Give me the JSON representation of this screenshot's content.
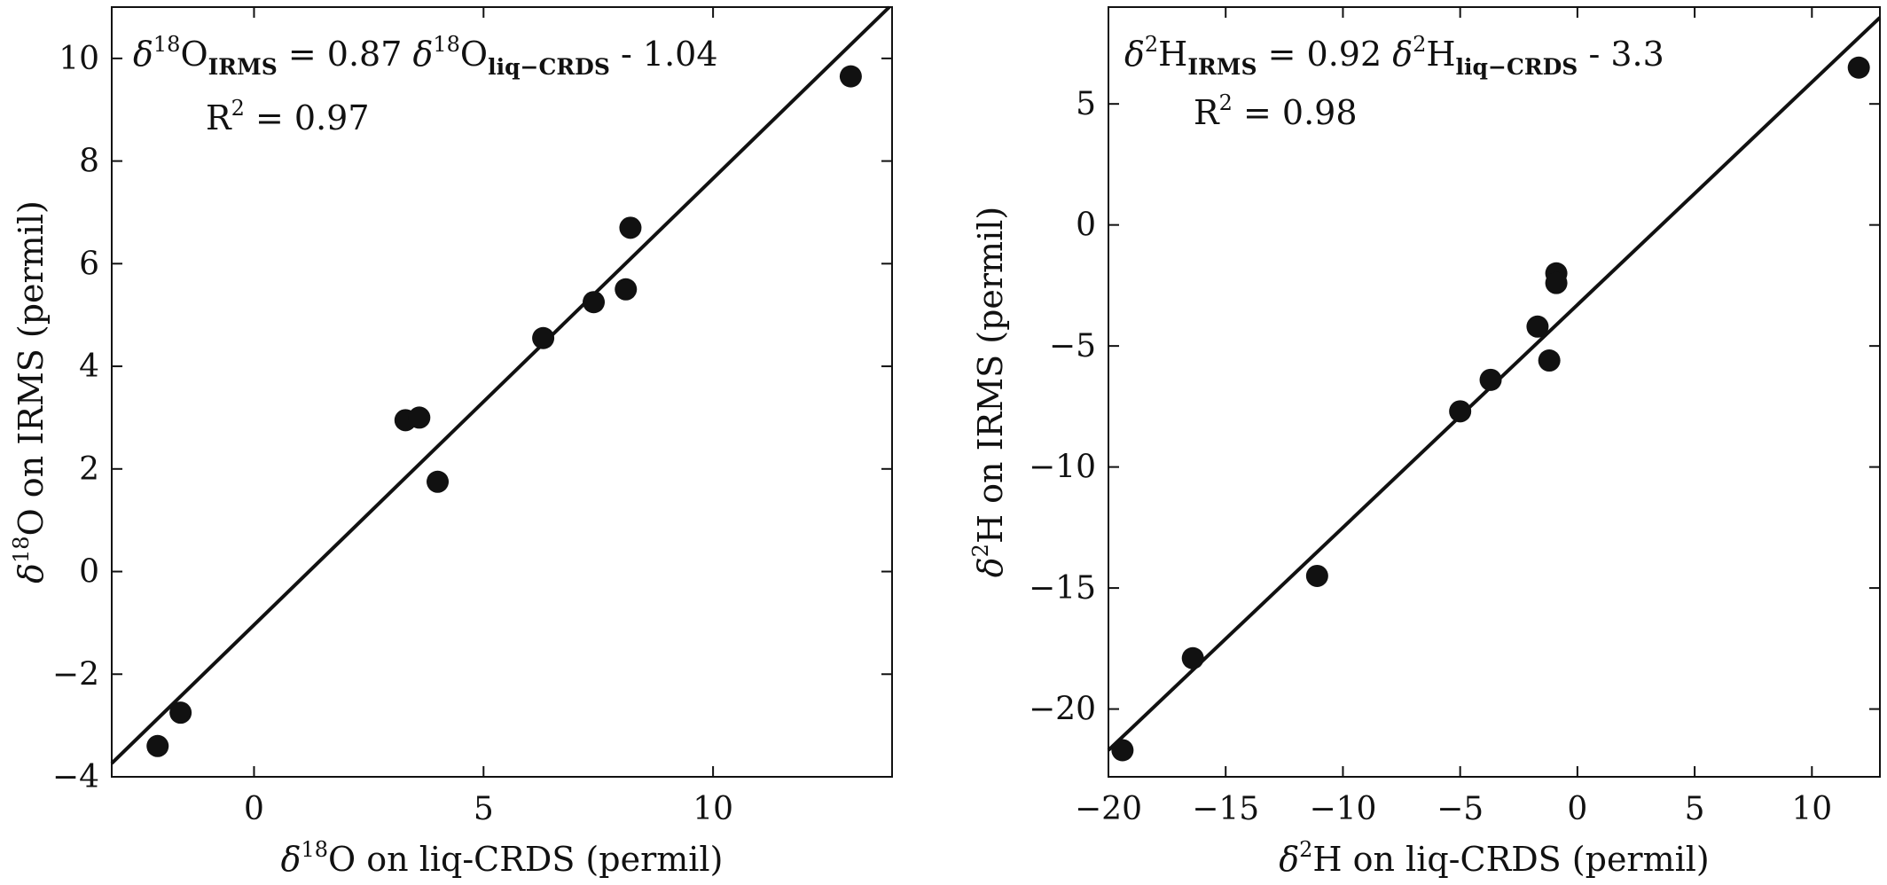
{
  "chart_data": [
    {
      "type": "scatter",
      "xlabel": {
        "delta": "δ",
        "sup": "18",
        "rest": "O on liq-CRDS (permil)"
      },
      "ylabel": {
        "delta": "δ",
        "sup": "18",
        "rest": "O on IRMS (permil)"
      },
      "xlim": [
        -3.1,
        13.9
      ],
      "ylim": [
        -4,
        11
      ],
      "xticks": [
        0,
        5,
        10
      ],
      "yticks": [
        -4,
        -2,
        0,
        2,
        4,
        6,
        8,
        10
      ],
      "tick_labels_x": [
        "0",
        "5",
        "10"
      ],
      "tick_labels_y": [
        "−4",
        "−2",
        "0",
        "2",
        "4",
        "6",
        "8",
        "10"
      ],
      "annotation": {
        "lhs_delta": "δ",
        "lhs_sup": "18",
        "lhs_base": "O",
        "lhs_sub": "IRMS",
        "equals_coef": " = 0.87 ",
        "rhs_delta": "δ",
        "rhs_sup": "18",
        "rhs_base": "O",
        "rhs_sub": "liq−CRDS",
        "intercept": " - 1.04",
        "r2_base": "R",
        "r2_sup": "2",
        "r2_value": " = 0.97"
      },
      "fit": {
        "slope": 0.87,
        "intercept": -1.04
      },
      "points": [
        {
          "x": -2.1,
          "y": -3.4
        },
        {
          "x": -1.6,
          "y": -2.75
        },
        {
          "x": 3.3,
          "y": 2.95
        },
        {
          "x": 3.6,
          "y": 3.0
        },
        {
          "x": 4.0,
          "y": 1.75
        },
        {
          "x": 6.3,
          "y": 4.55
        },
        {
          "x": 7.4,
          "y": 5.25
        },
        {
          "x": 8.1,
          "y": 5.5
        },
        {
          "x": 8.2,
          "y": 6.7
        },
        {
          "x": 13.0,
          "y": 9.65
        }
      ]
    },
    {
      "type": "scatter",
      "xlabel": {
        "delta": "δ",
        "sup": "2",
        "rest": "H on liq-CRDS (permil)"
      },
      "ylabel": {
        "delta": "δ",
        "sup": "2",
        "rest": "H on IRMS (permil)"
      },
      "xlim": [
        -20,
        12.9
      ],
      "ylim": [
        -22.8,
        9
      ],
      "xticks": [
        -20,
        -15,
        -10,
        -5,
        0,
        5,
        10
      ],
      "yticks": [
        -20,
        -15,
        -10,
        -5,
        0,
        5
      ],
      "tick_labels_x": [
        "−20",
        "−15",
        "−10",
        "−5",
        "0",
        "5",
        "10"
      ],
      "tick_labels_y": [
        "−20",
        "−15",
        "−10",
        "−5",
        "0",
        "5"
      ],
      "annotation": {
        "lhs_delta": "δ",
        "lhs_sup": "2",
        "lhs_base": "H",
        "lhs_sub": "IRMS",
        "equals_coef": " = 0.92 ",
        "rhs_delta": "δ",
        "rhs_sup": "2",
        "rhs_base": "H",
        "rhs_sub": "liq−CRDS",
        "intercept": " - 3.3",
        "r2_base": "R",
        "r2_sup": "2",
        "r2_value": " = 0.98"
      },
      "fit": {
        "slope": 0.92,
        "intercept": -3.3
      },
      "points": [
        {
          "x": -19.4,
          "y": -21.7
        },
        {
          "x": -16.4,
          "y": -17.9
        },
        {
          "x": -11.1,
          "y": -14.5
        },
        {
          "x": -5.0,
          "y": -7.7
        },
        {
          "x": -3.7,
          "y": -6.4
        },
        {
          "x": -1.7,
          "y": -4.2
        },
        {
          "x": -1.2,
          "y": -5.6
        },
        {
          "x": -0.9,
          "y": -2.0
        },
        {
          "x": -0.9,
          "y": -2.4
        },
        {
          "x": 12.0,
          "y": 6.5
        }
      ]
    }
  ]
}
